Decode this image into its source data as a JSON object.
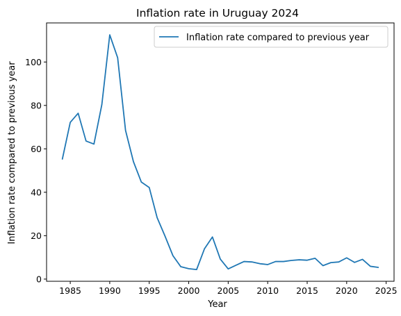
{
  "chart_data": {
    "type": "line",
    "title": "Inflation rate in Uruguay 2024",
    "xlabel": "Year",
    "ylabel": "Inflation rate compared to previous year",
    "xlim": [
      1982,
      2026
    ],
    "ylim": [
      -1,
      118
    ],
    "xticks": [
      1985,
      1990,
      1995,
      2000,
      2005,
      2010,
      2015,
      2020,
      2025
    ],
    "yticks": [
      0,
      20,
      40,
      60,
      80,
      100
    ],
    "grid": false,
    "legend_position": "top-right",
    "line_color": "#1f77b4",
    "series": [
      {
        "name": "Inflation rate compared to previous year",
        "x": [
          1984,
          1985,
          1986,
          1987,
          1988,
          1989,
          1990,
          1991,
          1992,
          1993,
          1994,
          1995,
          1996,
          1997,
          1998,
          1999,
          2000,
          2001,
          2002,
          2003,
          2004,
          2005,
          2006,
          2007,
          2008,
          2009,
          2010,
          2011,
          2012,
          2013,
          2014,
          2015,
          2016,
          2017,
          2018,
          2019,
          2020,
          2021,
          2022,
          2023,
          2024
        ],
        "y": [
          55.3,
          72.2,
          76.4,
          63.6,
          62.2,
          80.4,
          112.5,
          102.0,
          68.5,
          54.1,
          44.7,
          42.2,
          28.3,
          19.8,
          10.8,
          5.7,
          4.8,
          4.4,
          14.0,
          19.4,
          9.2,
          4.7,
          6.4,
          8.1,
          7.9,
          7.1,
          6.7,
          8.1,
          8.1,
          8.6,
          8.9,
          8.7,
          9.6,
          6.2,
          7.6,
          7.9,
          9.8,
          7.7,
          9.1,
          5.9,
          5.4
        ]
      }
    ]
  }
}
